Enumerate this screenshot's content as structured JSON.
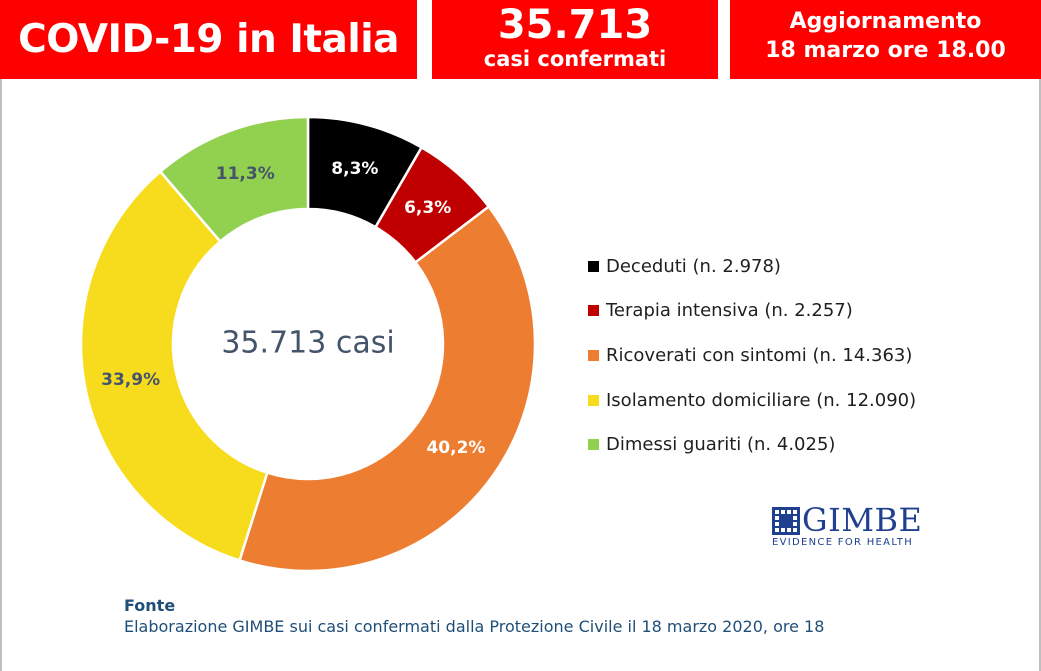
{
  "header": {
    "title": "COVID-19 in Italia",
    "cases_number": "35.713",
    "cases_label": "casi confermati",
    "update_label": "Aggiornamento",
    "update_date": "18 marzo ore 18.00"
  },
  "colors": {
    "header_bg": "#ff0000",
    "header_text": "#ffffff",
    "deceduti": "#000000",
    "terapia": "#c00000",
    "ricoverati": "#ed7d31",
    "isolamento": "#f7dc1e",
    "dimessi": "#92d050",
    "center_text": "#44546a",
    "source_text": "#1f4e79",
    "logo": "#1f3f8f"
  },
  "chart_data": {
    "type": "pie",
    "donut": true,
    "center_label": "35.713 casi",
    "total": 35713,
    "slices": [
      {
        "label": "Deceduti (n. 2.978)",
        "value": 2978,
        "percent_label": "8,3%",
        "color": "#000000",
        "label_color": "#ffffff"
      },
      {
        "label": "Terapia intensiva (n. 2.257)",
        "value": 2257,
        "percent_label": "6,3%",
        "color": "#c00000",
        "label_color": "#ffffff"
      },
      {
        "label": "Ricoverati con sintomi (n. 14.363)",
        "value": 14363,
        "percent_label": "40,2%",
        "color": "#ed7d31",
        "label_color": "#ffffff"
      },
      {
        "label": "Isolamento domiciliare (n. 12.090)",
        "value": 12090,
        "percent_label": "33,9%",
        "color": "#f7dc1e",
        "label_color": "#44546a"
      },
      {
        "label": "Dimessi guariti (n. 4.025)",
        "value": 4025,
        "percent_label": "11,3%",
        "color": "#92d050",
        "label_color": "#44546a"
      }
    ],
    "legend_position": "right"
  },
  "logo": {
    "name": "GIMBE",
    "tagline": "EVIDENCE FOR HEALTH"
  },
  "source": {
    "title": "Fonte",
    "text": "Elaborazione GIMBE sui casi confermati dalla Protezione Civile il 18 marzo 2020, ore 18"
  }
}
